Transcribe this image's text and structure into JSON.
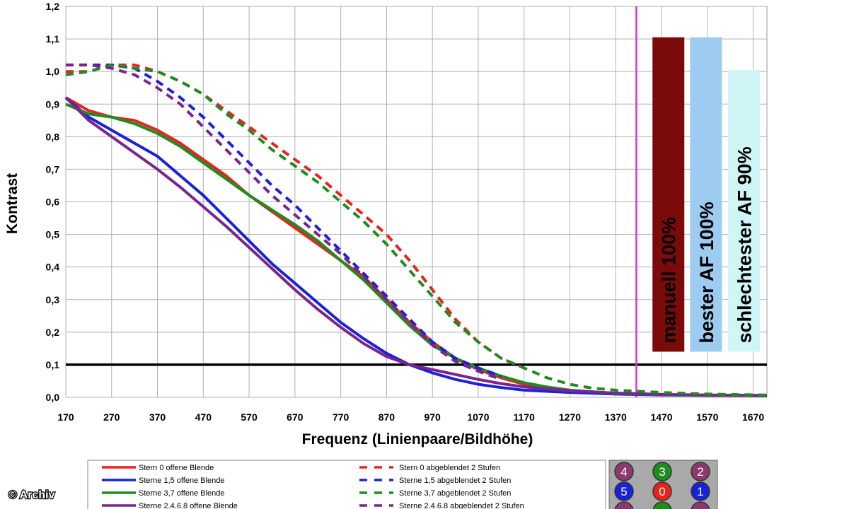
{
  "chart_data": {
    "type": "line",
    "xlabel": "Frequenz (Linienpaare/Bildhöhe)",
    "ylabel": "Kontrast",
    "xlim": [
      170,
      1700
    ],
    "ylim": [
      0,
      1.2
    ],
    "x_ticks": [
      "170",
      "270",
      "370",
      "470",
      "570",
      "670",
      "770",
      "870",
      "970",
      "1070",
      "1170",
      "1270",
      "1370",
      "1470",
      "1570",
      "1670"
    ],
    "y_ticks": [
      "0,0",
      "0,1",
      "0,2",
      "0,3",
      "0,4",
      "0,5",
      "0,6",
      "0,7",
      "0,8",
      "0,9",
      "1,0",
      "1,1",
      "1,2"
    ],
    "grid": true,
    "reference_line": {
      "y": 0.1,
      "color": "#000000"
    },
    "vertical_marker": {
      "x": 1415,
      "color": "#dd33dd"
    },
    "series": [
      {
        "name": "Stern 0 offene Blende",
        "color": "#e8231e",
        "dash": false,
        "points": [
          [
            170,
            0.92
          ],
          [
            220,
            0.88
          ],
          [
            270,
            0.86
          ],
          [
            320,
            0.85
          ],
          [
            370,
            0.82
          ],
          [
            420,
            0.78
          ],
          [
            470,
            0.73
          ],
          [
            520,
            0.68
          ],
          [
            570,
            0.62
          ],
          [
            620,
            0.57
          ],
          [
            670,
            0.52
          ],
          [
            720,
            0.47
          ],
          [
            770,
            0.42
          ],
          [
            820,
            0.37
          ],
          [
            870,
            0.3
          ],
          [
            920,
            0.23
          ],
          [
            970,
            0.17
          ],
          [
            1020,
            0.12
          ],
          [
            1070,
            0.085
          ],
          [
            1120,
            0.06
          ],
          [
            1170,
            0.04
          ],
          [
            1220,
            0.028
          ],
          [
            1270,
            0.02
          ],
          [
            1370,
            0.012
          ],
          [
            1470,
            0.008
          ],
          [
            1570,
            0.006
          ],
          [
            1700,
            0.005
          ]
        ]
      },
      {
        "name": "Sterne 1,5 offene Blende",
        "color": "#1a22d8",
        "dash": false,
        "points": [
          [
            170,
            0.92
          ],
          [
            220,
            0.86
          ],
          [
            270,
            0.82
          ],
          [
            320,
            0.78
          ],
          [
            370,
            0.74
          ],
          [
            420,
            0.68
          ],
          [
            470,
            0.62
          ],
          [
            520,
            0.55
          ],
          [
            570,
            0.48
          ],
          [
            620,
            0.41
          ],
          [
            670,
            0.35
          ],
          [
            720,
            0.29
          ],
          [
            770,
            0.23
          ],
          [
            820,
            0.18
          ],
          [
            870,
            0.135
          ],
          [
            920,
            0.1
          ],
          [
            970,
            0.075
          ],
          [
            1020,
            0.055
          ],
          [
            1070,
            0.04
          ],
          [
            1120,
            0.03
          ],
          [
            1170,
            0.022
          ],
          [
            1270,
            0.015
          ],
          [
            1370,
            0.01
          ],
          [
            1470,
            0.007
          ],
          [
            1570,
            0.006
          ],
          [
            1700,
            0.005
          ]
        ]
      },
      {
        "name": "Sterne 3,7 offene Blende",
        "color": "#1f8c1f",
        "dash": false,
        "points": [
          [
            170,
            0.9
          ],
          [
            220,
            0.87
          ],
          [
            270,
            0.86
          ],
          [
            320,
            0.84
          ],
          [
            370,
            0.81
          ],
          [
            420,
            0.77
          ],
          [
            470,
            0.72
          ],
          [
            520,
            0.67
          ],
          [
            570,
            0.62
          ],
          [
            620,
            0.575
          ],
          [
            670,
            0.53
          ],
          [
            720,
            0.48
          ],
          [
            770,
            0.42
          ],
          [
            820,
            0.36
          ],
          [
            870,
            0.29
          ],
          [
            920,
            0.22
          ],
          [
            970,
            0.16
          ],
          [
            1020,
            0.12
          ],
          [
            1070,
            0.09
          ],
          [
            1120,
            0.065
          ],
          [
            1170,
            0.045
          ],
          [
            1220,
            0.032
          ],
          [
            1270,
            0.022
          ],
          [
            1370,
            0.012
          ],
          [
            1470,
            0.008
          ],
          [
            1570,
            0.006
          ],
          [
            1700,
            0.005
          ]
        ]
      },
      {
        "name": "Sterne 2,4,6,8 offene Blende",
        "color": "#7a2490",
        "dash": false,
        "points": [
          [
            170,
            0.92
          ],
          [
            220,
            0.85
          ],
          [
            270,
            0.8
          ],
          [
            320,
            0.75
          ],
          [
            370,
            0.7
          ],
          [
            420,
            0.645
          ],
          [
            470,
            0.585
          ],
          [
            520,
            0.525
          ],
          [
            570,
            0.46
          ],
          [
            620,
            0.395
          ],
          [
            670,
            0.33
          ],
          [
            720,
            0.27
          ],
          [
            770,
            0.215
          ],
          [
            820,
            0.165
          ],
          [
            870,
            0.125
          ],
          [
            920,
            0.1
          ],
          [
            970,
            0.085
          ],
          [
            1020,
            0.07
          ],
          [
            1070,
            0.055
          ],
          [
            1120,
            0.042
          ],
          [
            1170,
            0.032
          ],
          [
            1270,
            0.02
          ],
          [
            1370,
            0.013
          ],
          [
            1470,
            0.009
          ],
          [
            1570,
            0.007
          ],
          [
            1700,
            0.006
          ]
        ]
      },
      {
        "name": "Stern 0 abgeblendet 2 Stufen",
        "color": "#e8231e",
        "dash": true,
        "points": [
          [
            170,
            1.0
          ],
          [
            220,
            1.0
          ],
          [
            270,
            1.02
          ],
          [
            320,
            1.02
          ],
          [
            370,
            1.0
          ],
          [
            420,
            0.97
          ],
          [
            470,
            0.93
          ],
          [
            520,
            0.88
          ],
          [
            570,
            0.83
          ],
          [
            620,
            0.78
          ],
          [
            670,
            0.73
          ],
          [
            720,
            0.68
          ],
          [
            770,
            0.62
          ],
          [
            820,
            0.56
          ],
          [
            870,
            0.5
          ],
          [
            920,
            0.42
          ],
          [
            970,
            0.33
          ],
          [
            1020,
            0.24
          ],
          [
            1070,
            0.17
          ],
          [
            1120,
            0.12
          ],
          [
            1170,
            0.09
          ]
        ]
      },
      {
        "name": "Stern 1,5 abgeblendet 2 Stufen",
        "color": "#1a22d8",
        "dash": true,
        "points": [
          [
            170,
            1.02
          ],
          [
            220,
            1.02
          ],
          [
            270,
            1.02
          ],
          [
            320,
            1.01
          ],
          [
            370,
            0.97
          ],
          [
            420,
            0.92
          ],
          [
            470,
            0.86
          ],
          [
            520,
            0.79
          ],
          [
            570,
            0.72
          ],
          [
            620,
            0.65
          ],
          [
            670,
            0.59
          ],
          [
            720,
            0.52
          ],
          [
            770,
            0.45
          ],
          [
            820,
            0.38
          ],
          [
            870,
            0.31
          ],
          [
            920,
            0.24
          ],
          [
            970,
            0.17
          ],
          [
            1020,
            0.12
          ],
          [
            1070,
            0.09
          ],
          [
            1120,
            0.065
          ]
        ]
      },
      {
        "name": "Sterne 3,7 abgeblendet 2 Stufen",
        "color": "#1f8c1f",
        "dash": true,
        "points": [
          [
            170,
            0.99
          ],
          [
            220,
            1.0
          ],
          [
            270,
            1.02
          ],
          [
            320,
            1.01
          ],
          [
            370,
            1.0
          ],
          [
            420,
            0.97
          ],
          [
            470,
            0.93
          ],
          [
            520,
            0.87
          ],
          [
            570,
            0.82
          ],
          [
            620,
            0.76
          ],
          [
            670,
            0.71
          ],
          [
            720,
            0.66
          ],
          [
            770,
            0.6
          ],
          [
            820,
            0.54
          ],
          [
            870,
            0.47
          ],
          [
            920,
            0.39
          ],
          [
            970,
            0.31
          ],
          [
            1020,
            0.23
          ],
          [
            1070,
            0.17
          ],
          [
            1120,
            0.12
          ],
          [
            1170,
            0.09
          ],
          [
            1220,
            0.06
          ],
          [
            1270,
            0.04
          ],
          [
            1320,
            0.028
          ],
          [
            1370,
            0.022
          ],
          [
            1470,
            0.015
          ],
          [
            1570,
            0.01
          ],
          [
            1700,
            0.007
          ]
        ]
      },
      {
        "name": "Sterne 2,4,6,8 abgeblendet 2 Stufen",
        "color": "#7a2490",
        "dash": true,
        "points": [
          [
            170,
            1.02
          ],
          [
            220,
            1.02
          ],
          [
            270,
            1.01
          ],
          [
            320,
            0.99
          ],
          [
            370,
            0.95
          ],
          [
            420,
            0.9
          ],
          [
            470,
            0.83
          ],
          [
            520,
            0.76
          ],
          [
            570,
            0.69
          ],
          [
            620,
            0.62
          ],
          [
            670,
            0.56
          ],
          [
            720,
            0.5
          ],
          [
            770,
            0.44
          ],
          [
            820,
            0.37
          ],
          [
            870,
            0.3
          ],
          [
            920,
            0.23
          ],
          [
            970,
            0.16
          ],
          [
            1020,
            0.11
          ],
          [
            1070,
            0.08
          ],
          [
            1120,
            0.055
          ]
        ]
      }
    ],
    "bars": [
      {
        "label": "manuell 100%",
        "value": 1.105,
        "x": 1485,
        "color": "#7b0a0a"
      },
      {
        "label": "bester AF 100%",
        "value": 1.105,
        "x": 1567,
        "color": "#9ecbf0"
      },
      {
        "label": "schlechtester AF 90%",
        "value": 1.005,
        "x": 1650,
        "color": "#cff5f7"
      }
    ]
  },
  "legend": {
    "items": [
      {
        "label": "Stern 0 offene Blende",
        "color": "#e8231e",
        "dash": false
      },
      {
        "label": "Sterne 1,5 offene Blende",
        "color": "#1a22d8",
        "dash": false
      },
      {
        "label": "Sterne 3,7 offene Blende",
        "color": "#1f8c1f",
        "dash": false
      },
      {
        "label": "Sterne 2.4.6.8 offene Blende",
        "color": "#7a2490",
        "dash": false
      },
      {
        "label": "Stern 0 abgeblendet 2 Stufen",
        "color": "#e8231e",
        "dash": true
      },
      {
        "label": "Sterne 1,5 abgeblendet 2 Stufen",
        "color": "#1a22d8",
        "dash": true
      },
      {
        "label": "Sterne 3,7 abgeblendet 2 Stufen",
        "color": "#1f8c1f",
        "dash": true
      },
      {
        "label": "Sterne 2.4.6.8 abgeblendet 2 Stufen",
        "color": "#7a2490",
        "dash": true
      }
    ]
  },
  "position_key": {
    "badges": [
      {
        "label": "4",
        "color": "#8c3a6e"
      },
      {
        "label": "3",
        "color": "#1f8c1f"
      },
      {
        "label": "2",
        "color": "#8c3a6e"
      },
      {
        "label": "5",
        "color": "#1a22d8"
      },
      {
        "label": "0",
        "color": "#e8231e"
      },
      {
        "label": "1",
        "color": "#1a22d8"
      },
      {
        "label": "",
        "color": "#8c3a6e"
      },
      {
        "label": "",
        "color": "#1f8c1f"
      },
      {
        "label": "",
        "color": "#8c3a6e"
      }
    ]
  },
  "watermark": "© Archiv"
}
